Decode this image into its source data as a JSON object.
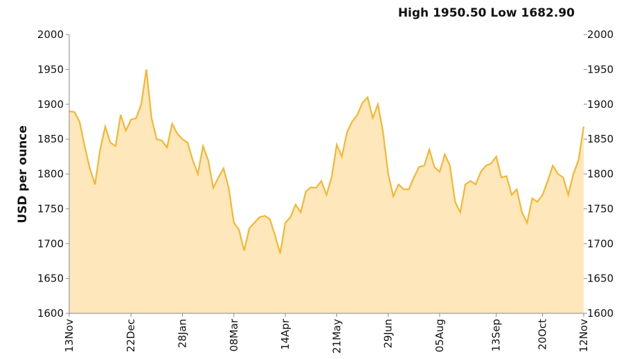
{
  "chart_data": {
    "type": "area",
    "annotation": "High 1950.50 Low 1682.90",
    "ylabel": "USD per ounce",
    "categories": [
      "13Nov",
      null,
      null,
      null,
      null,
      null,
      null,
      null,
      null,
      null,
      null,
      null,
      "22Dec",
      null,
      null,
      null,
      null,
      null,
      null,
      null,
      null,
      null,
      "28Jan",
      null,
      null,
      null,
      null,
      null,
      null,
      null,
      null,
      null,
      "08Mar",
      null,
      null,
      null,
      null,
      null,
      null,
      null,
      null,
      null,
      "14Apr",
      null,
      null,
      null,
      null,
      null,
      null,
      null,
      null,
      null,
      "21May",
      null,
      null,
      null,
      null,
      null,
      null,
      null,
      null,
      null,
      "29Jun",
      null,
      null,
      null,
      null,
      null,
      null,
      null,
      null,
      null,
      "05Aug",
      null,
      null,
      null,
      null,
      null,
      null,
      null,
      null,
      null,
      null,
      "13Sep",
      null,
      null,
      null,
      null,
      null,
      null,
      null,
      null,
      "20Oct",
      null,
      null,
      null,
      null,
      null,
      null,
      null,
      "12Nov"
    ],
    "values": [
      1890,
      1889,
      1875,
      1840,
      1808,
      1785,
      1835,
      1868,
      1845,
      1840,
      1885,
      1862,
      1878,
      1880,
      1900,
      1950,
      1880,
      1850,
      1848,
      1838,
      1872,
      1858,
      1850,
      1845,
      1820,
      1800,
      1840,
      1820,
      1780,
      1795,
      1808,
      1780,
      1730,
      1720,
      1690,
      1722,
      1730,
      1738,
      1740,
      1735,
      1712,
      1686,
      1730,
      1738,
      1756,
      1745,
      1775,
      1781,
      1780,
      1790,
      1770,
      1795,
      1842,
      1825,
      1860,
      1875,
      1885,
      1902,
      1910,
      1880,
      1900,
      1860,
      1800,
      1768,
      1785,
      1778,
      1778,
      1795,
      1810,
      1812,
      1835,
      1810,
      1803,
      1828,
      1812,
      1760,
      1745,
      1785,
      1790,
      1785,
      1803,
      1812,
      1815,
      1825,
      1795,
      1797,
      1770,
      1778,
      1745,
      1730,
      1765,
      1760,
      1770,
      1790,
      1812,
      1800,
      1795,
      1770,
      1800,
      1820,
      1868
    ],
    "color": "#f5b731",
    "fill": "#fde7bb",
    "ylim": [
      1600,
      2000
    ],
    "yticks": [
      1600,
      1650,
      1700,
      1750,
      1800,
      1850,
      1900,
      1950,
      2000
    ],
    "y2lim": [
      1600,
      2000
    ],
    "y2ticks": [
      1600,
      1650,
      1700,
      1750,
      1800,
      1850,
      1900,
      1950,
      2000
    ]
  }
}
